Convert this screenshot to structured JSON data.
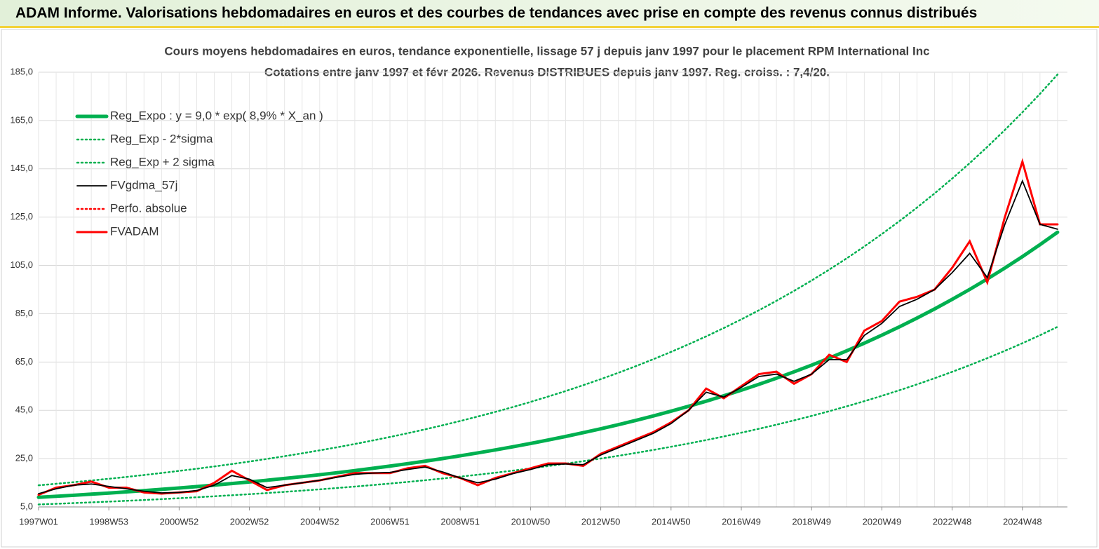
{
  "header": {
    "title": "ADAM Informe. Valorisations hebdomadaires en euros et des courbes de tendances avec prise en compte des revenus connus distribués"
  },
  "chart_data": {
    "type": "line",
    "title": "Cours moyens hebdomadaires en euros, tendance exponentielle, lissage 57 j depuis janv 1997 pour le placement RPM International Inc",
    "subtitle": "Cotations entre janv 1997 et févr 2026. Revenus DISTRIBUES depuis janv 1997. Reg. croiss. : 7,4/20.",
    "categories": [
      "1997W01",
      null,
      null,
      null,
      "1998W53",
      null,
      null,
      null,
      "2000W52",
      null,
      null,
      null,
      "2002W52",
      null,
      null,
      null,
      "2004W52",
      null,
      null,
      null,
      "2006W51",
      null,
      null,
      null,
      "2008W51",
      null,
      null,
      null,
      "2010W50",
      null,
      null,
      null,
      "2012W50",
      null,
      null,
      null,
      "2014W50",
      null,
      null,
      null,
      "2016W49",
      null,
      null,
      null,
      "2018W49",
      null,
      null,
      null,
      "2020W49",
      null,
      null,
      null,
      "2022W48",
      null,
      null,
      null,
      "2024W48",
      null,
      null
    ],
    "ylim": [
      5,
      185
    ],
    "yticks": [
      {
        "value": 5,
        "label": "5,0"
      },
      {
        "value": 25,
        "label": "25,0"
      },
      {
        "value": 45,
        "label": "45,0"
      },
      {
        "value": 65,
        "label": "65,0"
      },
      {
        "value": 85,
        "label": "85,0"
      },
      {
        "value": 105,
        "label": "105,0"
      },
      {
        "value": 125,
        "label": "125,0"
      },
      {
        "value": 145,
        "label": "145,0"
      },
      {
        "value": 165,
        "label": "165,0"
      },
      {
        "value": 185,
        "label": "185,0"
      }
    ],
    "grid": true,
    "legend": "upper left",
    "series": [
      {
        "name": "Reg_Expo : y = 9,0 * exp( 8,9% *  X_an )",
        "color": "#00b050",
        "style": "solid",
        "values": [
          9.0,
          9.41,
          9.84,
          10.29,
          10.75,
          11.24,
          11.75,
          12.29,
          12.85,
          13.43,
          14.04,
          14.68,
          15.35,
          16.05,
          16.78,
          17.54,
          18.34,
          19.17,
          20.04,
          20.96,
          21.91,
          22.91,
          23.95,
          25.04,
          26.18,
          27.37,
          28.61,
          29.91,
          31.27,
          32.7,
          34.18,
          35.74,
          37.36,
          39.06,
          40.84,
          42.7,
          44.64,
          46.67,
          48.79,
          51.01,
          53.33,
          55.76,
          58.29,
          60.94,
          63.71,
          66.61,
          69.64,
          72.81,
          76.12,
          79.58,
          83.2,
          86.98,
          90.94,
          95.07,
          99.4,
          103.92,
          108.64,
          113.59,
          118.75
        ]
      },
      {
        "name": "Reg_Exp - 2*sigma",
        "color": "#00b050",
        "style": "dotted",
        "values": [
          6.03,
          6.3,
          6.59,
          6.89,
          7.2,
          7.53,
          7.87,
          8.23,
          8.61,
          9.0,
          9.41,
          9.84,
          10.28,
          10.75,
          11.24,
          11.75,
          12.29,
          12.84,
          13.43,
          14.04,
          14.68,
          15.35,
          16.05,
          16.78,
          17.54,
          18.34,
          19.17,
          20.04,
          20.95,
          21.91,
          22.9,
          23.95,
          25.03,
          26.17,
          27.36,
          28.61,
          29.91,
          31.27,
          32.69,
          34.18,
          35.73,
          37.36,
          39.05,
          40.83,
          42.69,
          44.63,
          46.66,
          48.78,
          51.0,
          53.32,
          55.74,
          58.28,
          60.93,
          63.7,
          66.6,
          69.63,
          72.79,
          76.1,
          79.56
        ]
      },
      {
        "name": "Reg_Exp + 2 sigma",
        "color": "#00b050",
        "style": "dotted",
        "values": [
          13.95,
          14.59,
          15.25,
          15.95,
          16.66,
          17.42,
          18.21,
          19.05,
          19.92,
          20.82,
          21.76,
          22.75,
          23.79,
          24.88,
          26.01,
          27.19,
          28.43,
          29.71,
          31.06,
          32.49,
          33.96,
          35.51,
          37.12,
          38.81,
          40.58,
          42.42,
          44.35,
          46.36,
          48.47,
          50.69,
          52.98,
          55.4,
          57.91,
          60.54,
          63.3,
          66.19,
          69.19,
          72.34,
          75.62,
          79.07,
          82.66,
          86.43,
          90.35,
          94.46,
          98.75,
          103.25,
          107.94,
          112.86,
          117.99,
          123.35,
          128.96,
          134.82,
          140.96,
          147.36,
          154.07,
          161.08,
          168.39,
          176.06,
          184.06
        ]
      },
      {
        "name": "FVgdma_57j",
        "color": "#000000",
        "style": "solid",
        "values": [
          10.5,
          12.5,
          14,
          14.5,
          13.5,
          12.5,
          11.5,
          10.8,
          11,
          11.8,
          14,
          18,
          16.5,
          13,
          14,
          15,
          16,
          17.3,
          18.5,
          19,
          19.3,
          20.5,
          21.5,
          19.5,
          17,
          15,
          16.5,
          18.8,
          20.5,
          22.5,
          22.8,
          22.5,
          26.5,
          29.5,
          32.5,
          35.5,
          39.5,
          45,
          52.5,
          50.5,
          54.5,
          59,
          60,
          57,
          60,
          66,
          66,
          76,
          81,
          88,
          91,
          95,
          102,
          110,
          100,
          122,
          140,
          122,
          120
        ]
      },
      {
        "name": "Perfo. absolue",
        "color": "#ff0000",
        "style": "dotted",
        "values": [
          10,
          13,
          14,
          15.5,
          13,
          13,
          11,
          10.5,
          11,
          11.5,
          15,
          20,
          16,
          12,
          14,
          15,
          16,
          17.5,
          19,
          19,
          19,
          21,
          22,
          19,
          17,
          14,
          17,
          19,
          21,
          23,
          23,
          22,
          27,
          30,
          33,
          36,
          40,
          45,
          54,
          50,
          55,
          60,
          61,
          56,
          60,
          68,
          65,
          78,
          82,
          90,
          92,
          95,
          104,
          115,
          98,
          125,
          148,
          122,
          122
        ]
      },
      {
        "name": "FVADAM",
        "color": "#ff0000",
        "style": "solid",
        "values": [
          10,
          13,
          14,
          15.5,
          13,
          13,
          11,
          10.5,
          11,
          11.5,
          15,
          20,
          16,
          12,
          14,
          15,
          16,
          17.5,
          19,
          19,
          19,
          21,
          22,
          19,
          17,
          14,
          17,
          19,
          21,
          23,
          23,
          22,
          27,
          30,
          33,
          36,
          40,
          45,
          54,
          50,
          55,
          60,
          61,
          56,
          60,
          68,
          65,
          78,
          82,
          90,
          92,
          95,
          104,
          115,
          98,
          125,
          148,
          122,
          122
        ]
      }
    ]
  }
}
